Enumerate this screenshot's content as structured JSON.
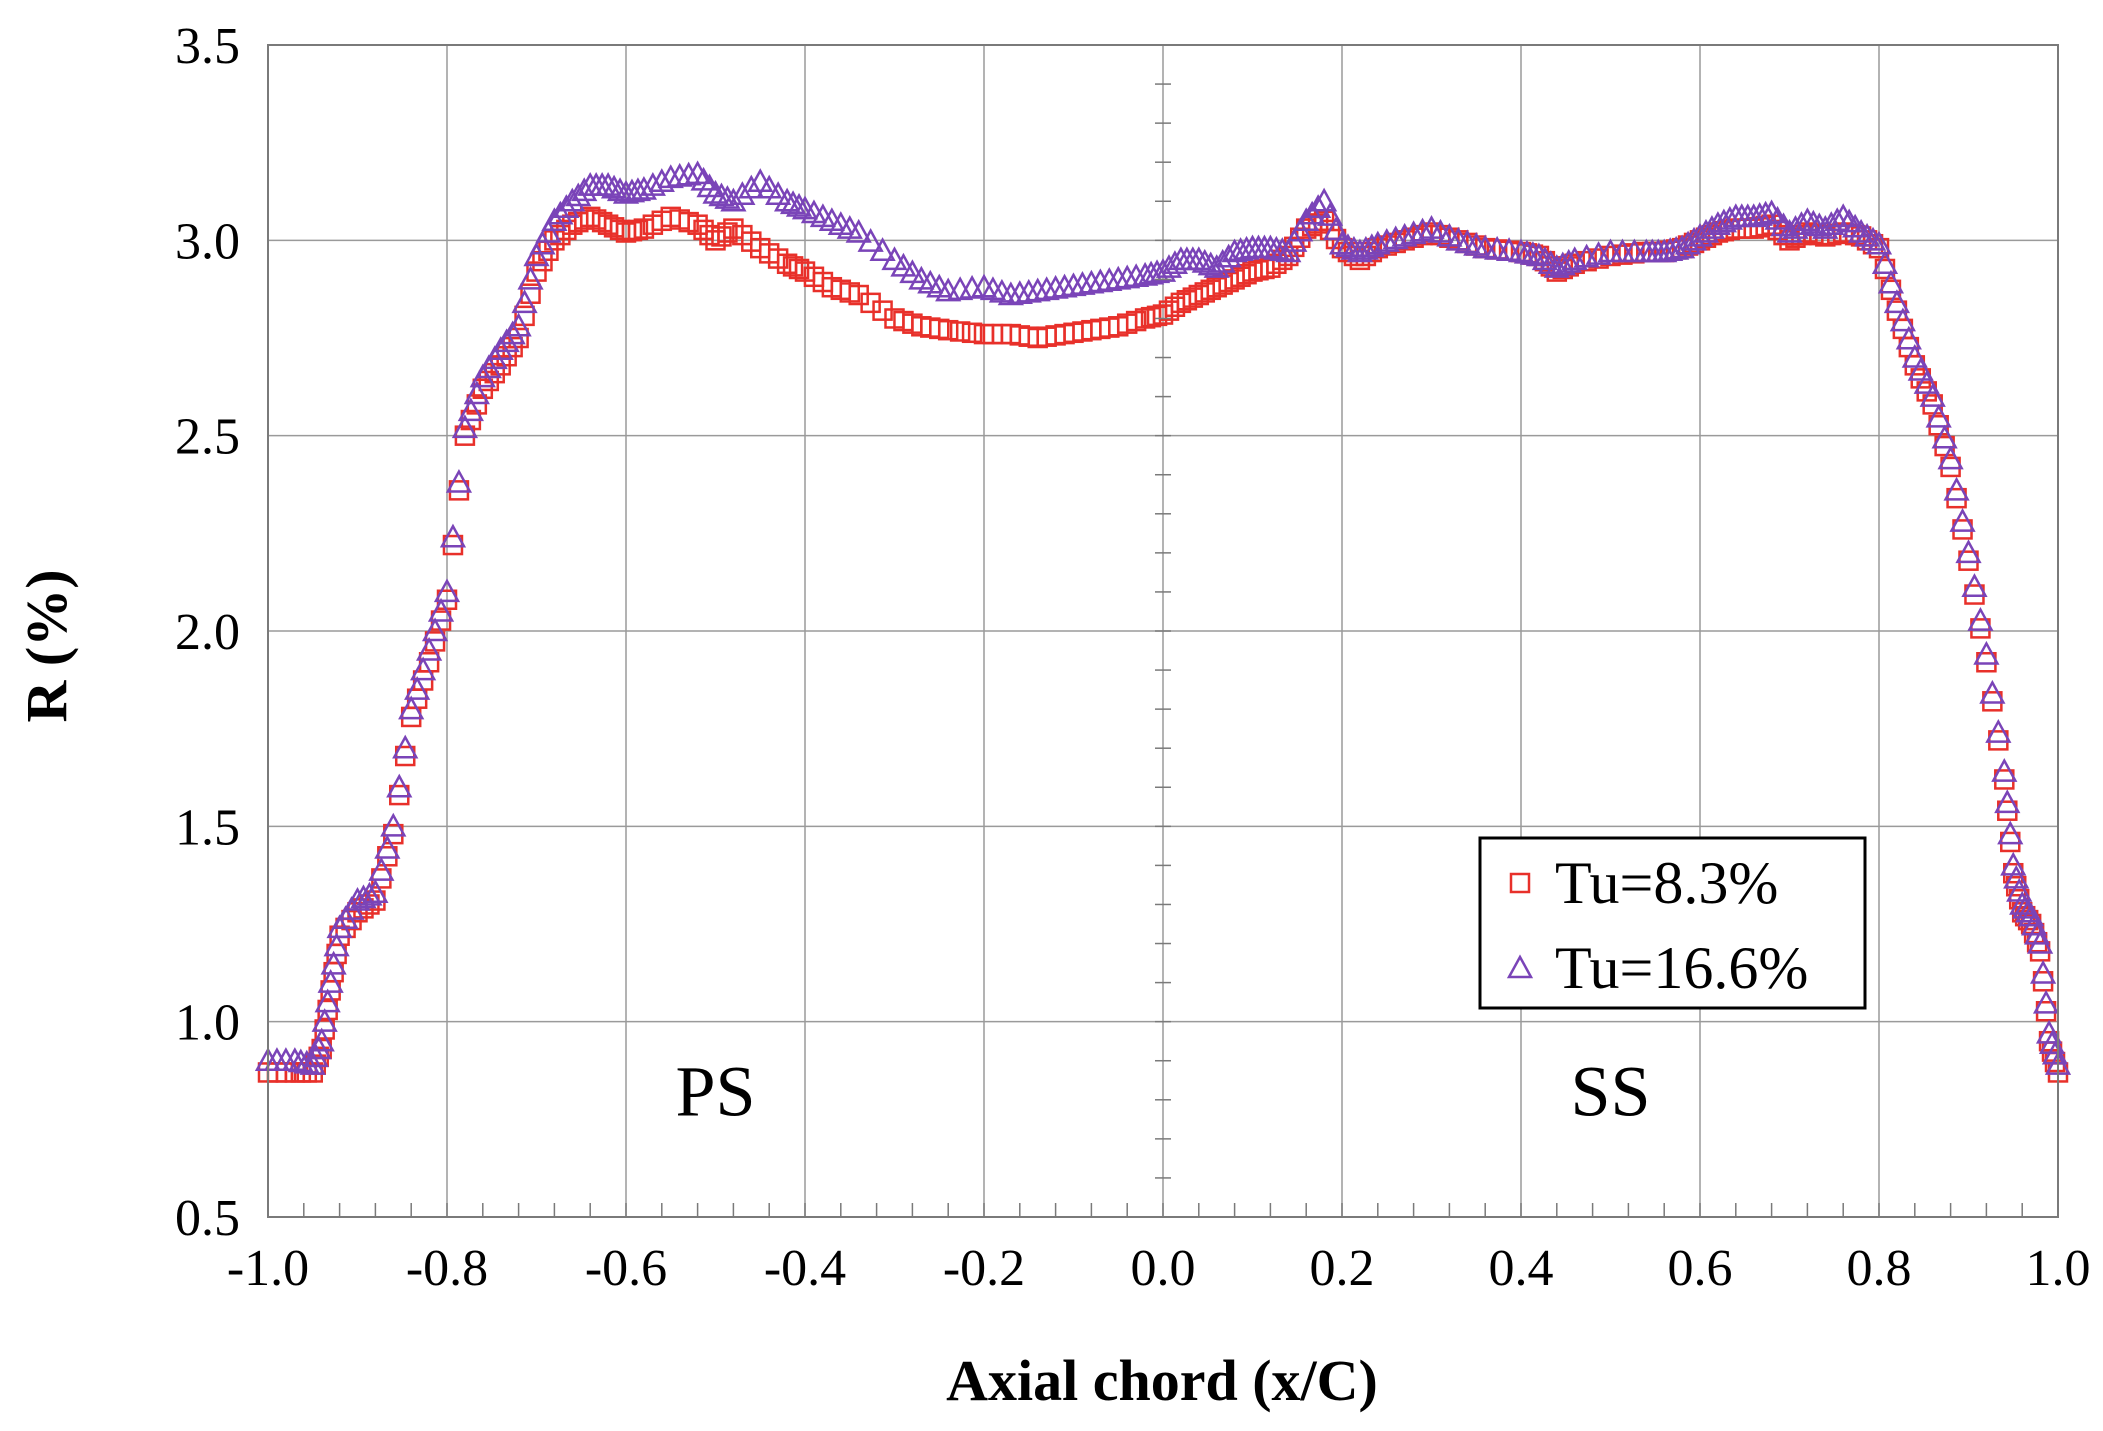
{
  "chart_data": {
    "type": "scatter",
    "title": "",
    "xlabel": "Axial chord (x/C)",
    "ylabel": "R (%)",
    "xlim": [
      -1.0,
      1.0
    ],
    "ylim": [
      0.5,
      3.5
    ],
    "xticks": [
      "-1.0",
      "-0.8",
      "-0.6",
      "-0.4",
      "-0.2",
      "0.0",
      "0.2",
      "0.4",
      "0.6",
      "0.8",
      "1.0"
    ],
    "yticks": [
      "0.5",
      "1.0",
      "1.5",
      "2.0",
      "2.5",
      "3.0",
      "3.5"
    ],
    "grid": true,
    "legend_position": "bottom-right",
    "annotations": [
      {
        "text": "PS",
        "x": -0.5,
        "y": 0.76
      },
      {
        "text": "SS",
        "x": 0.5,
        "y": 0.76
      }
    ],
    "series": [
      {
        "name": "Tu=8.3%",
        "marker": "square",
        "color": "#e8302a",
        "x": [
          -1.0,
          -0.97,
          -0.95,
          -0.94,
          -0.93,
          -0.92,
          -0.9,
          -0.88,
          -0.86,
          -0.84,
          -0.82,
          -0.8,
          -0.78,
          -0.76,
          -0.74,
          -0.72,
          -0.7,
          -0.68,
          -0.66,
          -0.64,
          -0.62,
          -0.6,
          -0.58,
          -0.55,
          -0.52,
          -0.5,
          -0.48,
          -0.45,
          -0.42,
          -0.4,
          -0.37,
          -0.34,
          -0.3,
          -0.27,
          -0.24,
          -0.2,
          -0.17,
          -0.14,
          -0.11,
          -0.08,
          -0.05,
          -0.02,
          0.0,
          0.02,
          0.04,
          0.06,
          0.08,
          0.1,
          0.12,
          0.14,
          0.16,
          0.18,
          0.2,
          0.22,
          0.24,
          0.27,
          0.3,
          0.33,
          0.36,
          0.4,
          0.42,
          0.44,
          0.46,
          0.5,
          0.54,
          0.56,
          0.58,
          0.6,
          0.62,
          0.64,
          0.66,
          0.68,
          0.7,
          0.72,
          0.74,
          0.76,
          0.78,
          0.8,
          0.82,
          0.84,
          0.86,
          0.88,
          0.9,
          0.92,
          0.94,
          0.95,
          0.96,
          0.97,
          0.98,
          0.99,
          1.0
        ],
        "y": [
          0.87,
          0.87,
          0.87,
          0.93,
          1.08,
          1.22,
          1.28,
          1.31,
          1.48,
          1.78,
          1.92,
          2.08,
          2.5,
          2.62,
          2.68,
          2.75,
          2.92,
          3.0,
          3.04,
          3.06,
          3.04,
          3.02,
          3.03,
          3.06,
          3.04,
          3.0,
          3.03,
          2.98,
          2.94,
          2.92,
          2.88,
          2.86,
          2.8,
          2.78,
          2.77,
          2.76,
          2.76,
          2.75,
          2.76,
          2.77,
          2.78,
          2.8,
          2.81,
          2.84,
          2.86,
          2.88,
          2.9,
          2.92,
          2.93,
          2.96,
          3.03,
          3.05,
          2.98,
          2.95,
          2.98,
          3.0,
          3.02,
          3.0,
          2.98,
          2.97,
          2.96,
          2.92,
          2.94,
          2.96,
          2.97,
          2.97,
          2.98,
          3.0,
          3.02,
          3.03,
          3.03,
          3.04,
          3.0,
          3.02,
          3.01,
          3.02,
          3.01,
          2.98,
          2.82,
          2.68,
          2.58,
          2.42,
          2.18,
          1.92,
          1.62,
          1.38,
          1.28,
          1.25,
          1.18,
          0.95,
          0.87
        ]
      },
      {
        "name": "Tu=16.6%",
        "marker": "triangle",
        "color": "#7a44b8",
        "x": [
          -1.0,
          -0.97,
          -0.95,
          -0.94,
          -0.93,
          -0.92,
          -0.9,
          -0.88,
          -0.86,
          -0.84,
          -0.82,
          -0.8,
          -0.78,
          -0.76,
          -0.74,
          -0.72,
          -0.7,
          -0.68,
          -0.66,
          -0.64,
          -0.62,
          -0.6,
          -0.58,
          -0.55,
          -0.52,
          -0.5,
          -0.48,
          -0.45,
          -0.42,
          -0.4,
          -0.37,
          -0.34,
          -0.3,
          -0.27,
          -0.24,
          -0.2,
          -0.17,
          -0.14,
          -0.11,
          -0.08,
          -0.05,
          -0.02,
          0.0,
          0.02,
          0.04,
          0.06,
          0.08,
          0.1,
          0.12,
          0.14,
          0.16,
          0.18,
          0.2,
          0.22,
          0.24,
          0.27,
          0.3,
          0.33,
          0.36,
          0.4,
          0.42,
          0.44,
          0.46,
          0.5,
          0.54,
          0.56,
          0.58,
          0.6,
          0.62,
          0.64,
          0.66,
          0.68,
          0.7,
          0.72,
          0.74,
          0.76,
          0.78,
          0.8,
          0.82,
          0.84,
          0.86,
          0.88,
          0.9,
          0.92,
          0.94,
          0.95,
          0.96,
          0.97,
          0.98,
          0.99,
          1.0
        ],
        "y": [
          0.9,
          0.9,
          0.89,
          0.95,
          1.1,
          1.24,
          1.31,
          1.33,
          1.5,
          1.8,
          1.95,
          2.1,
          2.52,
          2.65,
          2.72,
          2.78,
          2.96,
          3.05,
          3.1,
          3.14,
          3.14,
          3.12,
          3.13,
          3.16,
          3.17,
          3.12,
          3.1,
          3.15,
          3.1,
          3.08,
          3.05,
          3.02,
          2.95,
          2.9,
          2.87,
          2.88,
          2.86,
          2.87,
          2.88,
          2.89,
          2.9,
          2.91,
          2.92,
          2.95,
          2.95,
          2.93,
          2.97,
          2.98,
          2.98,
          2.97,
          3.05,
          3.1,
          2.99,
          2.97,
          2.99,
          3.01,
          3.03,
          3.0,
          2.98,
          2.97,
          2.96,
          2.93,
          2.95,
          2.97,
          2.97,
          2.97,
          2.98,
          3.01,
          3.04,
          3.06,
          3.06,
          3.07,
          3.02,
          3.05,
          3.03,
          3.06,
          3.02,
          2.99,
          2.84,
          2.7,
          2.6,
          2.44,
          2.2,
          1.94,
          1.64,
          1.4,
          1.3,
          1.27,
          1.2,
          0.97,
          0.89
        ]
      }
    ]
  }
}
